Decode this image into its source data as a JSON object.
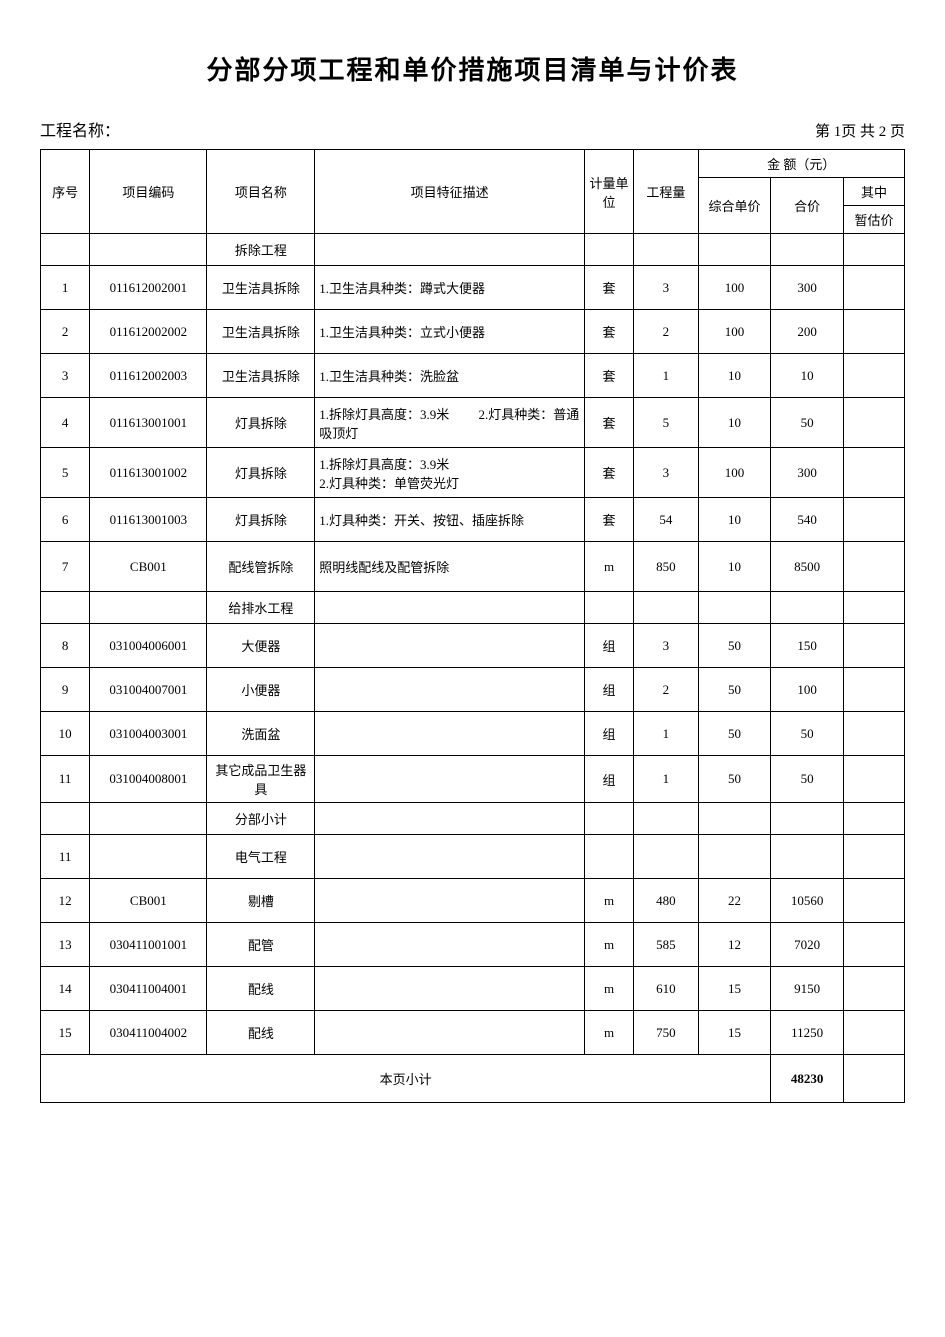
{
  "document": {
    "title": "分部分项工程和单价措施项目清单与计价表",
    "project_name_label": "工程名称：",
    "page_info": "第 1页 共 2 页"
  },
  "table": {
    "headers": {
      "seq": "序号",
      "code": "项目编码",
      "name": "项目名称",
      "desc": "项目特征描述",
      "unit": "计量单位",
      "qty": "工程量",
      "amount_group": "金    额（元）",
      "unit_price": "综合单价",
      "total_price": "合价",
      "of_which": "其中",
      "est_price": "暂估价"
    },
    "rows": [
      {
        "seq": "",
        "code": "",
        "name": "拆除工程",
        "desc": "",
        "unit": "",
        "qty": "",
        "price": "",
        "total": "",
        "est": "",
        "small": true
      },
      {
        "seq": "1",
        "code": "011612002001",
        "name": "卫生洁具拆除",
        "desc": "1.卫生洁具种类：蹲式大便器",
        "unit": "套",
        "qty": "3",
        "price": "100",
        "total": "300",
        "est": ""
      },
      {
        "seq": "2",
        "code": "011612002002",
        "name": "卫生洁具拆除",
        "desc": "1.卫生洁具种类：立式小便器",
        "unit": "套",
        "qty": "2",
        "price": "100",
        "total": "200",
        "est": ""
      },
      {
        "seq": "3",
        "code": "011612002003",
        "name": "卫生洁具拆除",
        "desc": "1.卫生洁具种类：洗脸盆",
        "unit": "套",
        "qty": "1",
        "price": "10",
        "total": "10",
        "est": ""
      },
      {
        "seq": "4",
        "code": "011613001001",
        "name": "灯具拆除",
        "desc": "1.拆除灯具高度：3.9米         2.灯具种类：普通吸顶灯",
        "unit": "套",
        "qty": "5",
        "price": "10",
        "total": "50",
        "est": "",
        "tall": true
      },
      {
        "seq": "5",
        "code": "011613001002",
        "name": "灯具拆除",
        "desc": "1.拆除灯具高度：3.9米\n2.灯具种类：单管荧光灯",
        "unit": "套",
        "qty": "3",
        "price": "100",
        "total": "300",
        "est": "",
        "tall": true
      },
      {
        "seq": "6",
        "code": "011613001003",
        "name": "灯具拆除",
        "desc": "1.灯具种类：开关、按钮、插座拆除",
        "unit": "套",
        "qty": "54",
        "price": "10",
        "total": "540",
        "est": ""
      },
      {
        "seq": "7",
        "code": "CB001",
        "name": "配线管拆除",
        "desc": "照明线配线及配管拆除",
        "unit": "m",
        "qty": "850",
        "price": "10",
        "total": "8500",
        "est": "",
        "tall": true
      },
      {
        "seq": "",
        "code": "",
        "name": "给排水工程",
        "desc": "",
        "unit": "",
        "qty": "",
        "price": "",
        "total": "",
        "est": "",
        "small": true
      },
      {
        "seq": "8",
        "code": "031004006001",
        "name": "大便器",
        "desc": "",
        "unit": "组",
        "qty": "3",
        "price": "50",
        "total": "150",
        "est": ""
      },
      {
        "seq": "9",
        "code": "031004007001",
        "name": "小便器",
        "desc": "",
        "unit": "组",
        "qty": "2",
        "price": "50",
        "total": "100",
        "est": ""
      },
      {
        "seq": "10",
        "code": "031004003001",
        "name": "洗面盆",
        "desc": "",
        "unit": "组",
        "qty": "1",
        "price": "50",
        "total": "50",
        "est": ""
      },
      {
        "seq": "11",
        "code": "031004008001",
        "name": "其它成品卫生器具",
        "desc": "",
        "unit": "组",
        "qty": "1",
        "price": "50",
        "total": "50",
        "est": ""
      },
      {
        "seq": "",
        "code": "",
        "name": "分部小计",
        "desc": "",
        "unit": "",
        "qty": "",
        "price": "",
        "total": "",
        "est": "",
        "small": true
      },
      {
        "seq": "11",
        "code": "",
        "name": "电气工程",
        "desc": "",
        "unit": "",
        "qty": "",
        "price": "",
        "total": "",
        "est": ""
      },
      {
        "seq": "12",
        "code": "CB001",
        "name": "剔槽",
        "desc": "",
        "unit": "m",
        "qty": "480",
        "price": "22",
        "total": "10560",
        "est": ""
      },
      {
        "seq": "13",
        "code": "030411001001",
        "name": "配管",
        "desc": "",
        "unit": "m",
        "qty": "585",
        "price": "12",
        "total": "7020",
        "est": ""
      },
      {
        "seq": "14",
        "code": "030411004001",
        "name": "配线",
        "desc": "",
        "unit": "m",
        "qty": "610",
        "price": "15",
        "total": "9150",
        "est": ""
      },
      {
        "seq": "15",
        "code": "030411004002",
        "name": "配线",
        "desc": "",
        "unit": "m",
        "qty": "750",
        "price": "15",
        "total": "11250",
        "est": ""
      }
    ],
    "footer": {
      "label": "本页小计",
      "total": "48230"
    }
  },
  "style": {
    "border_color": "#000000",
    "background": "#ffffff",
    "title_fontsize": 26,
    "cell_fontsize": 13,
    "header_fontsize": 16
  }
}
